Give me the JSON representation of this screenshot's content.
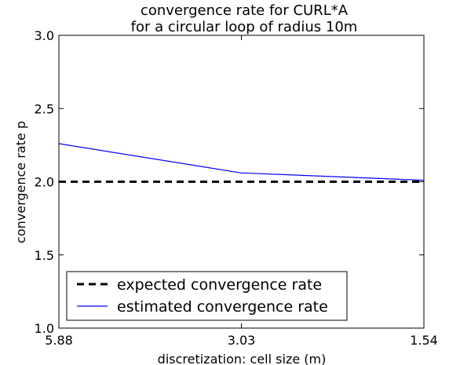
{
  "chart_data": {
    "type": "line",
    "title": [
      "convergence rate for CURL*A",
      "for a circular loop of radius 10m"
    ],
    "xlabel": "discretization: cell size (m)",
    "ylabel": "convergence rate p",
    "x_tick_labels": [
      "5.88",
      "3.03",
      "1.54"
    ],
    "y_ticks": [
      1.0,
      1.5,
      2.0,
      2.5,
      3.0
    ],
    "y_tick_labels": [
      "1.0",
      "1.5",
      "2.0",
      "2.5",
      "3.0"
    ],
    "ylim": [
      1.0,
      3.0
    ],
    "grid": false,
    "legend_position": "lower-left",
    "series": [
      {
        "name": "expected convergence rate",
        "values": [
          2.0,
          2.0,
          2.0
        ],
        "color": "#000000",
        "style": "dashed"
      },
      {
        "name": "estimated convergence rate",
        "values": [
          2.26,
          2.06,
          2.01
        ],
        "color": "#0000ff",
        "style": "solid"
      }
    ]
  }
}
